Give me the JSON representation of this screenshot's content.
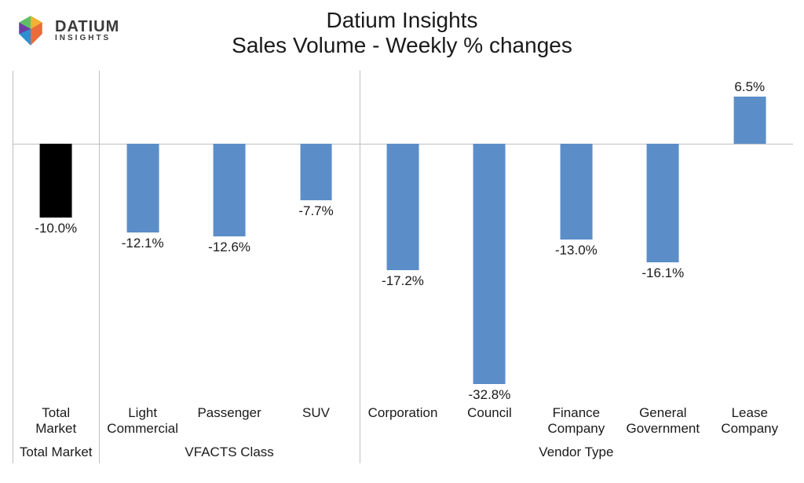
{
  "brand": {
    "name": "DATIUM",
    "sub": "INSIGHTS"
  },
  "title": {
    "line1": "Datium Insights",
    "line2": "Sales Volume - Weekly % changes"
  },
  "chart": {
    "type": "bar",
    "y_min": -35,
    "y_max": 10,
    "zero_line_color": "#bfbfbf",
    "separator_color": "#bfbfbf",
    "background_color": "#ffffff",
    "label_fontsize": 17,
    "value_fontsize": 17,
    "title_fontsize": 28,
    "bar_width_index": 0.37,
    "bars": [
      {
        "label": "Total Market",
        "value": -10.0,
        "display": "-10.0%",
        "color": "#000000",
        "group": 0
      },
      {
        "label": "Light Commercial",
        "value": -12.1,
        "display": "-12.1%",
        "color": "#5b8ec9",
        "group": 1
      },
      {
        "label": "Passenger",
        "value": -12.6,
        "display": "-12.6%",
        "color": "#5b8ec9",
        "group": 1
      },
      {
        "label": "SUV",
        "value": -7.7,
        "display": "-7.7%",
        "color": "#5b8ec9",
        "group": 1
      },
      {
        "label": "Corporation",
        "value": -17.2,
        "display": "-17.2%",
        "color": "#5b8ec9",
        "group": 2
      },
      {
        "label": "Council",
        "value": -32.8,
        "display": "-32.8%",
        "color": "#5b8ec9",
        "group": 2
      },
      {
        "label": "Finance Company",
        "value": -13.0,
        "display": "-13.0%",
        "color": "#5b8ec9",
        "group": 2
      },
      {
        "label": "General Government",
        "value": -16.1,
        "display": "-16.1%",
        "color": "#5b8ec9",
        "group": 2
      },
      {
        "label": "Lease Company",
        "value": 6.5,
        "display": "6.5%",
        "color": "#5b8ec9",
        "group": 2
      }
    ],
    "groups": [
      {
        "label": "Total Market",
        "start": 0,
        "end": 0
      },
      {
        "label": "VFACTS Class",
        "start": 1,
        "end": 3
      },
      {
        "label": "Vendor Type",
        "start": 4,
        "end": 8
      }
    ]
  }
}
